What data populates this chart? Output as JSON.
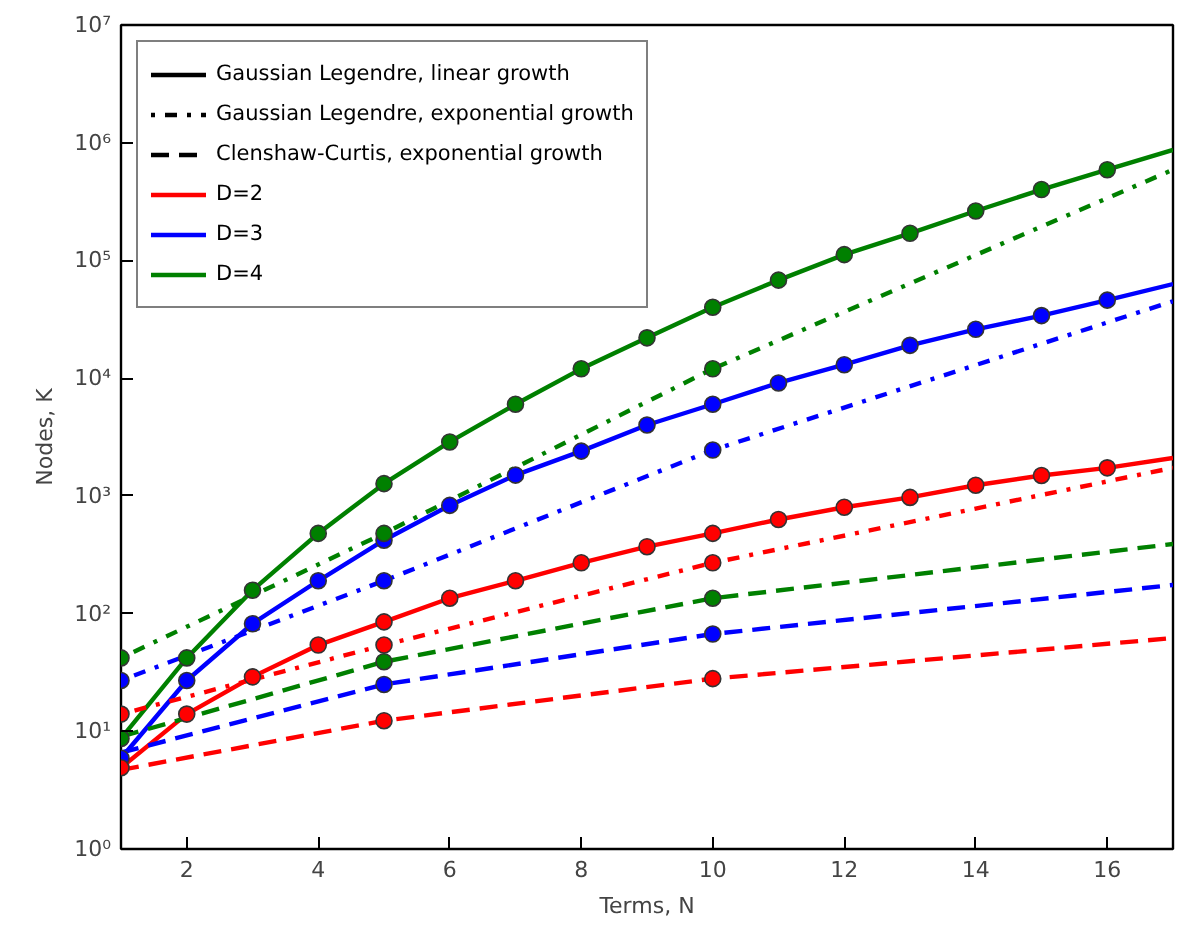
{
  "chart_data": {
    "type": "line",
    "xlabel": "Terms, N",
    "ylabel": "Nodes, K",
    "xlim": [
      1,
      17
    ],
    "xticks": [
      2,
      4,
      6,
      8,
      10,
      12,
      14,
      16
    ],
    "ylim": [
      1,
      10000000
    ],
    "log": "y",
    "yticks": [
      {
        "value": 1,
        "label": "10⁰"
      },
      {
        "value": 10,
        "label": "10¹"
      },
      {
        "value": 100,
        "label": "10²"
      },
      {
        "value": 1000,
        "label": "10³"
      },
      {
        "value": 10000,
        "label": "10⁴"
      },
      {
        "value": 100000,
        "label": "10⁵"
      },
      {
        "value": 1000000,
        "label": "10⁶"
      },
      {
        "value": 10000000,
        "label": "10⁷"
      }
    ],
    "legend": "top left",
    "series": [
      {
        "name": "Gaussian Legendre, linear growth",
        "color": "#000000",
        "line_style": "solid"
      },
      {
        "name": "Gaussian Legendre, exponential growth",
        "color": "#000000",
        "line_style": "dotted"
      },
      {
        "name": "Clenshaw-Curtis, exponential growth",
        "color": "#000000",
        "line_style": "dashed"
      },
      {
        "name": "D=2",
        "color": "#ff0000",
        "line_style": "solid"
      },
      {
        "name": "D=3",
        "color": "#0000ff",
        "line_style": "solid"
      },
      {
        "name": "D=4",
        "color": "#008000",
        "line_style": "solid"
      },
      {
        "type": "line",
        "color": "#008000",
        "line_style": "solid",
        "marker": "none",
        "x": [
          1,
          2,
          3,
          4,
          5,
          6,
          7,
          8,
          9,
          10,
          11,
          12,
          13,
          14,
          15,
          16,
          17
        ],
        "values": [
          8.7,
          42,
          158,
          480,
          1270,
          2870,
          6000,
          12000,
          22000,
          40000,
          68000,
          112000,
          170000,
          263000,
          400000,
          590000,
          870000
        ]
      },
      {
        "type": "line",
        "color": "#0000ff",
        "line_style": "solid",
        "marker": "none",
        "x": [
          1,
          2,
          3,
          4,
          5,
          6,
          7,
          8,
          9,
          10,
          11,
          12,
          13,
          14,
          15,
          16,
          17
        ],
        "values": [
          5.9,
          27,
          82,
          190,
          420,
          830,
          1500,
          2400,
          4000,
          6000,
          9100,
          13000,
          19000,
          26000,
          34000,
          46000,
          63000
        ]
      },
      {
        "type": "line",
        "color": "#ff0000",
        "line_style": "solid",
        "marker": "none",
        "x": [
          1,
          2,
          3,
          4,
          5,
          6,
          7,
          8,
          9,
          10,
          11,
          12,
          13,
          14,
          15,
          16,
          17
        ],
        "values": [
          4.9,
          14,
          29,
          54,
          85,
          135,
          190,
          270,
          370,
          480,
          630,
          800,
          970,
          1230,
          1490,
          1730,
          2100
        ]
      },
      {
        "type": "line",
        "color": "#008000",
        "line_style": "dotted",
        "marker": "none",
        "x": [
          1,
          5,
          10,
          17
        ],
        "values": [
          42,
          480,
          12000,
          590000
        ]
      },
      {
        "type": "line",
        "color": "#0000ff",
        "line_style": "dotted",
        "marker": "none",
        "x": [
          1,
          5,
          10,
          17
        ],
        "values": [
          27,
          190,
          2450,
          45000
        ]
      },
      {
        "type": "line",
        "color": "#ff0000",
        "line_style": "dotted",
        "marker": "none",
        "x": [
          1,
          5,
          10,
          17
        ],
        "values": [
          14,
          54,
          270,
          1730
        ]
      },
      {
        "type": "line",
        "color": "#008000",
        "line_style": "dashed",
        "marker": "none",
        "x": [
          1,
          5,
          10,
          17
        ],
        "values": [
          9,
          39,
          135,
          390
        ]
      },
      {
        "type": "line",
        "color": "#0000ff",
        "line_style": "dashed",
        "marker": "none",
        "x": [
          1,
          5,
          10,
          17
        ],
        "values": [
          6.6,
          25,
          67,
          175
        ]
      },
      {
        "type": "line",
        "color": "#ff0000",
        "line_style": "dashed",
        "marker": "none",
        "x": [
          1,
          5,
          10,
          17
        ],
        "values": [
          4.7,
          12.3,
          28,
          62
        ]
      },
      {
        "type": "scatter",
        "color": "#008000",
        "marker": "circle",
        "x": [
          1,
          2,
          3,
          4,
          5,
          6,
          7,
          8,
          9,
          10,
          11,
          12,
          13,
          14,
          15,
          16
        ],
        "values": [
          8.7,
          42,
          158,
          480,
          1270,
          2870,
          6000,
          12000,
          22000,
          40000,
          68000,
          112000,
          170000,
          263000,
          400000,
          590000
        ]
      },
      {
        "type": "scatter",
        "color": "#0000ff",
        "marker": "circle",
        "x": [
          1,
          2,
          3,
          4,
          5,
          6,
          7,
          8,
          9,
          10,
          11,
          12,
          13,
          14,
          15,
          16
        ],
        "values": [
          5.9,
          27,
          82,
          190,
          420,
          830,
          1500,
          2400,
          4000,
          6000,
          9100,
          13000,
          19000,
          26000,
          34000,
          46000
        ]
      },
      {
        "type": "scatter",
        "color": "#ff0000",
        "marker": "circle",
        "x": [
          1,
          2,
          3,
          4,
          5,
          6,
          7,
          8,
          9,
          10,
          11,
          12,
          13,
          14,
          15,
          16
        ],
        "values": [
          4.9,
          14,
          29,
          54,
          85,
          135,
          190,
          270,
          370,
          480,
          630,
          800,
          970,
          1230,
          1490,
          1730
        ]
      },
      {
        "type": "scatter",
        "color": "#008000",
        "marker": "circle",
        "x": [
          1,
          5,
          10
        ],
        "values": [
          42,
          480,
          12000
        ]
      },
      {
        "type": "scatter",
        "color": "#0000ff",
        "marker": "circle",
        "x": [
          1,
          5,
          10
        ],
        "values": [
          27,
          190,
          2450
        ]
      },
      {
        "type": "scatter",
        "color": "#ff0000",
        "marker": "circle",
        "x": [
          1,
          5,
          10
        ],
        "values": [
          14,
          54,
          270
        ]
      },
      {
        "type": "scatter",
        "color": "#008000",
        "marker": "circle",
        "x": [
          5,
          10
        ],
        "values": [
          39,
          135
        ]
      },
      {
        "type": "scatter",
        "color": "#0000ff",
        "marker": "circle",
        "x": [
          5,
          10
        ],
        "values": [
          25,
          67
        ]
      },
      {
        "type": "scatter",
        "color": "#ff0000",
        "marker": "circle",
        "x": [
          5,
          10
        ],
        "values": [
          12.3,
          28
        ]
      }
    ]
  }
}
